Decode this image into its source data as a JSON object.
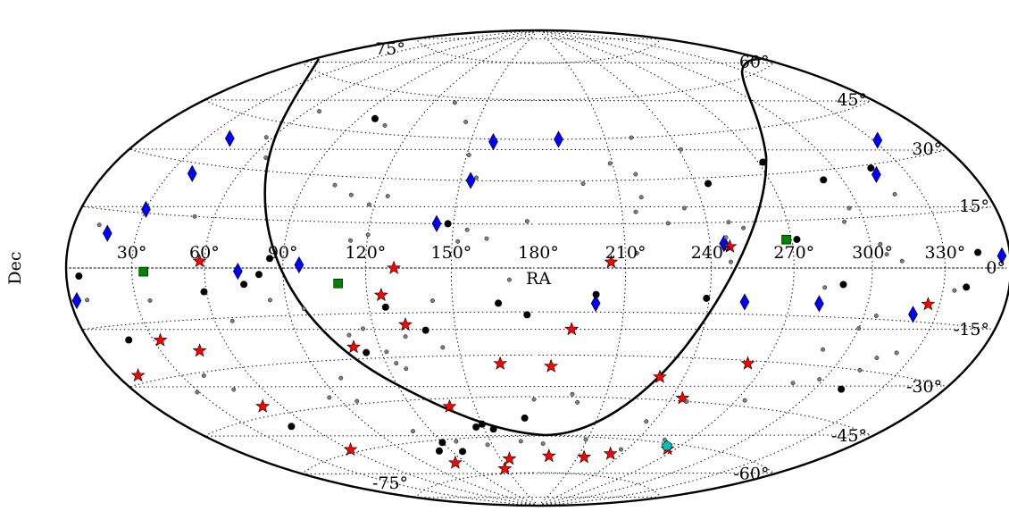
{
  "chart_data": {
    "type": "scatter",
    "projection": "hammer-aitoff (RA increases to the left)",
    "xlabel": "RA",
    "ylabel": "Dec",
    "ra_ticks": [
      "330°",
      "300°",
      "270°",
      "240°",
      "210°",
      "180°",
      "150°",
      "120°",
      "90°",
      "60°",
      "30°"
    ],
    "dec_ticks": [
      "-75°",
      "-60°",
      "-45°",
      "-30°",
      "-15°",
      "0°",
      "15°",
      "30°",
      "45°",
      "60°",
      "75°"
    ],
    "grid": true,
    "colors": {
      "blue_diamond": "#0000ff",
      "red_star": "#ff0000",
      "green_square": "#008000",
      "cyan_pentagon": "#00c0c0",
      "black_dot": "#000000",
      "gray_dot": "#808080"
    },
    "series": [
      {
        "marker": "diamond",
        "color": "#0000ff",
        "points": [
          [
            189,
            45
          ],
          [
            160,
            44
          ],
          [
            332,
            36
          ],
          [
            316,
            27
          ],
          [
            41,
            38
          ],
          [
            40,
            27
          ],
          [
            30,
            16
          ],
          [
            144,
            15
          ],
          [
            17,
            9
          ],
          [
            356,
            3
          ],
          [
            245,
            8
          ],
          [
            154,
            30
          ],
          [
            96,
            1
          ],
          [
            320,
            -13
          ],
          [
            253,
            -11
          ],
          [
            281,
            -11
          ],
          [
            200,
            -12
          ],
          [
            73,
            -1
          ],
          [
            3,
            -8
          ]
        ]
      },
      {
        "marker": "star",
        "color": "#ff0000",
        "points": [
          [
            247,
            7
          ],
          [
            205,
            2
          ],
          [
            130,
            0
          ],
          [
            58,
            2
          ],
          [
            325,
            -10
          ],
          [
            125,
            -9
          ],
          [
            192,
            -21
          ],
          [
            132,
            -19
          ],
          [
            110,
            -26
          ],
          [
            33,
            -20
          ],
          [
            47,
            -24
          ],
          [
            263,
            -31
          ],
          [
            230,
            -37
          ],
          [
            245,
            -44
          ],
          [
            165,
            -33
          ],
          [
            185,
            -34
          ],
          [
            51,
            -42
          ],
          [
            138,
            -48
          ],
          [
            60,
            -59
          ],
          [
            265,
            -62
          ],
          [
            232,
            -66
          ],
          [
            215,
            -68
          ],
          [
            188,
            -68
          ],
          [
            157,
            -69
          ],
          [
            148,
            -73
          ],
          [
            112,
            -69
          ],
          [
            10,
            -28
          ]
        ]
      },
      {
        "marker": "square",
        "color": "#008000",
        "points": [
          [
            268,
            9
          ],
          [
            110,
            -5
          ],
          [
            35,
            -1
          ]
        ]
      },
      {
        "marker": "pentagon",
        "color": "#00c0c0",
        "points": [
          [
            262,
            -61
          ]
        ]
      },
      {
        "marker": "dot-large",
        "color": "#000000",
        "points": [
          [
            98,
            50
          ],
          [
            272,
            34
          ],
          [
            245,
            28
          ],
          [
            316,
            29
          ],
          [
            292,
            27
          ],
          [
            148,
            15
          ],
          [
            345,
            4
          ],
          [
            272,
            9
          ],
          [
            81,
            -2
          ],
          [
            6,
            -2
          ],
          [
            340,
            -5
          ],
          [
            289,
            -5
          ],
          [
            75,
            -5
          ],
          [
            59,
            -7
          ],
          [
            19,
            -19
          ],
          [
            239,
            -10
          ],
          [
            200,
            -9
          ],
          [
            166,
            -12
          ],
          [
            126,
            -13
          ],
          [
            139,
            -21
          ],
          [
            176,
            -16
          ],
          [
            312,
            -36
          ],
          [
            114,
            -28
          ],
          [
            51,
            -49
          ],
          [
            173,
            -53
          ],
          [
            150,
            -55
          ],
          [
            146,
            -56
          ],
          [
            155,
            -57
          ],
          [
            120,
            -61
          ],
          [
            112,
            -64
          ],
          [
            127,
            -65
          ],
          [
            85,
            3
          ]
        ]
      },
      {
        "marker": "dot-small",
        "color": "#808080",
        "points": [
          [
            222,
            45
          ],
          [
            241,
            40
          ],
          [
            209,
            36
          ],
          [
            151,
            39
          ],
          [
            144,
            51
          ],
          [
            66,
            50
          ],
          [
            132,
            58
          ],
          [
            106,
            48
          ],
          [
            218,
            32
          ],
          [
            197,
            29
          ],
          [
            156,
            31
          ],
          [
            57,
            40
          ],
          [
            66,
            34
          ],
          [
            102,
            27
          ],
          [
            124,
            24
          ],
          [
            110,
            24
          ],
          [
            118,
            21
          ],
          [
            318,
            21
          ],
          [
            296,
            18
          ],
          [
            218,
            24
          ],
          [
            215,
            19
          ],
          [
            233,
            20
          ],
          [
            248,
            15
          ],
          [
            253,
            13
          ],
          [
            226,
            15
          ],
          [
            292,
            14
          ],
          [
            304,
            7
          ],
          [
            214,
            5
          ],
          [
            246,
            10
          ],
          [
            306,
            4
          ],
          [
            176,
            16
          ],
          [
            155,
            13
          ],
          [
            152,
            9
          ],
          [
            162,
            10
          ],
          [
            120,
            11
          ],
          [
            114,
            9
          ],
          [
            12,
            11
          ],
          [
            52,
            15
          ],
          [
            312,
            2
          ],
          [
            8,
            -8
          ],
          [
            335,
            -6
          ],
          [
            282,
            -6
          ],
          [
            247,
            2
          ],
          [
            170,
            -4
          ],
          [
            143,
            -11
          ],
          [
            96,
            -13
          ],
          [
            84,
            -10
          ],
          [
            67,
            -16
          ],
          [
            36,
            -9
          ],
          [
            305,
            -14
          ],
          [
            300,
            -18
          ],
          [
            290,
            -25
          ],
          [
            322,
            -24
          ],
          [
            315,
            -26
          ],
          [
            312,
            -30
          ],
          [
            298,
            -34
          ],
          [
            288,
            -36
          ],
          [
            195,
            -44
          ],
          [
            198,
            -47
          ],
          [
            178,
            -46
          ],
          [
            127,
            -34
          ],
          [
            122,
            -28
          ],
          [
            110,
            -22
          ],
          [
            116,
            -20
          ],
          [
            131,
            -23
          ],
          [
            144,
            -27
          ],
          [
            124,
            -32
          ],
          [
            98,
            -36
          ],
          [
            97,
            -44
          ],
          [
            86,
            -42
          ],
          [
            47,
            -36
          ],
          [
            40,
            -31
          ],
          [
            29,
            -35
          ],
          [
            274,
            -43
          ],
          [
            248,
            -45
          ],
          [
            236,
            -53
          ],
          [
            209,
            -61
          ],
          [
            183,
            -63
          ],
          [
            169,
            -62
          ],
          [
            256,
            -59
          ],
          [
            236,
            -64
          ],
          [
            147,
            -63
          ],
          [
            129,
            -61
          ],
          [
            110,
            -56
          ]
        ]
      }
    ]
  }
}
